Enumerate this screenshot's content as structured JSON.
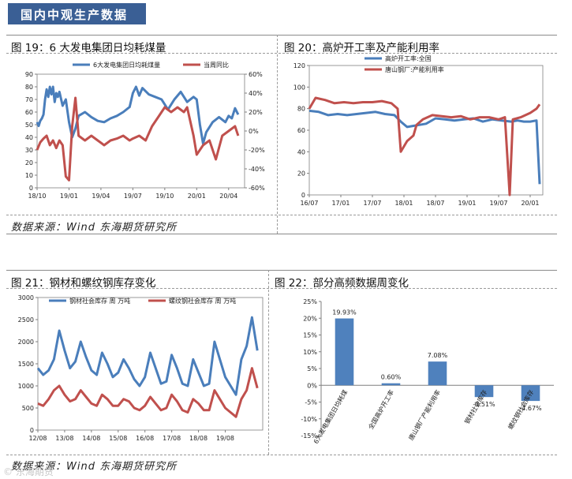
{
  "header": {
    "title": "国内中观生产数据"
  },
  "panels": {
    "p19": {
      "title": "图 19：6 大发电集团日均耗煤量"
    },
    "p20": {
      "title": "图 20：高炉开工率及产能利用率"
    },
    "p21": {
      "title": "图 21：钢材和螺纹钢库存变化"
    },
    "p22": {
      "title": "图 22：部分高频数据周变化"
    }
  },
  "sources": {
    "top": "数据来源：Wind   东海期货研究所",
    "bottom": "数据来源：Wind   东海期货研究所"
  },
  "watermark": "© 东海期货",
  "colors": {
    "blue": "#4a7ebb",
    "red": "#c0504d",
    "bar": "#4f81bd"
  },
  "chart_data": [
    {
      "id": "c19",
      "type": "line",
      "x_ticks": [
        "18/10",
        "19/01",
        "19/04",
        "19/07",
        "19/10",
        "20/01",
        "20/04"
      ],
      "y_left": {
        "range": [
          0,
          90
        ],
        "ticks": [
          "0",
          "10",
          "20",
          "30",
          "40",
          "50",
          "60",
          "70",
          "80",
          "90"
        ]
      },
      "y_right": {
        "range": [
          -60,
          60
        ],
        "ticks": [
          "-60%",
          "-40%",
          "-20%",
          "0%",
          "20%",
          "40%",
          "60%"
        ]
      },
      "series": [
        {
          "name": "6大发电集团日均耗煤量",
          "axis": "left",
          "color": "#4a7ebb",
          "points": [
            [
              0,
              52
            ],
            [
              0.05,
              49
            ],
            [
              0.1,
              53
            ],
            [
              0.15,
              55
            ],
            [
              0.2,
              58
            ],
            [
              0.25,
              70
            ],
            [
              0.3,
              78
            ],
            [
              0.35,
              72
            ],
            [
              0.4,
              80
            ],
            [
              0.45,
              74
            ],
            [
              0.5,
              80
            ],
            [
              0.55,
              68
            ],
            [
              0.6,
              75
            ],
            [
              0.65,
              72
            ],
            [
              0.7,
              76
            ],
            [
              0.8,
              65
            ],
            [
              0.9,
              70
            ],
            [
              1.0,
              52
            ],
            [
              1.1,
              40
            ],
            [
              1.2,
              47
            ],
            [
              1.3,
              57
            ],
            [
              1.5,
              60
            ],
            [
              1.7,
              56
            ],
            [
              1.9,
              53
            ],
            [
              2.1,
              52
            ],
            [
              2.3,
              55
            ],
            [
              2.5,
              57
            ],
            [
              2.7,
              60
            ],
            [
              2.9,
              64
            ],
            [
              3.0,
              75
            ],
            [
              3.1,
              80
            ],
            [
              3.2,
              73
            ],
            [
              3.3,
              79
            ],
            [
              3.5,
              74
            ],
            [
              3.7,
              72
            ],
            [
              3.9,
              70
            ],
            [
              4.1,
              62
            ],
            [
              4.3,
              70
            ],
            [
              4.5,
              76
            ],
            [
              4.7,
              68
            ],
            [
              4.9,
              72
            ],
            [
              5.0,
              70
            ],
            [
              5.1,
              50
            ],
            [
              5.2,
              35
            ],
            [
              5.3,
              44
            ],
            [
              5.5,
              52
            ],
            [
              5.7,
              56
            ],
            [
              5.9,
              52
            ],
            [
              6.0,
              57
            ],
            [
              6.1,
              55
            ],
            [
              6.2,
              63
            ],
            [
              6.3,
              58
            ]
          ]
        },
        {
          "name": "当周同比",
          "axis": "right",
          "color": "#c0504d",
          "points": [
            [
              0,
              -20
            ],
            [
              0.1,
              -12
            ],
            [
              0.2,
              -8
            ],
            [
              0.3,
              -5
            ],
            [
              0.4,
              -15
            ],
            [
              0.5,
              -10
            ],
            [
              0.6,
              -18
            ],
            [
              0.7,
              -10
            ],
            [
              0.8,
              -15
            ],
            [
              0.9,
              -48
            ],
            [
              1.0,
              -52
            ],
            [
              1.1,
              5
            ],
            [
              1.2,
              35
            ],
            [
              1.3,
              -5
            ],
            [
              1.5,
              -10
            ],
            [
              1.7,
              -5
            ],
            [
              1.9,
              -10
            ],
            [
              2.1,
              -15
            ],
            [
              2.3,
              -10
            ],
            [
              2.5,
              -8
            ],
            [
              2.7,
              -5
            ],
            [
              2.9,
              -10
            ],
            [
              3.0,
              -8
            ],
            [
              3.2,
              -5
            ],
            [
              3.4,
              -10
            ],
            [
              3.6,
              5
            ],
            [
              3.8,
              15
            ],
            [
              4.0,
              25
            ],
            [
              4.2,
              20
            ],
            [
              4.4,
              25
            ],
            [
              4.6,
              20
            ],
            [
              4.7,
              25
            ],
            [
              4.9,
              -5
            ],
            [
              5.0,
              -25
            ],
            [
              5.2,
              -15
            ],
            [
              5.4,
              -10
            ],
            [
              5.6,
              -30
            ],
            [
              5.8,
              -5
            ],
            [
              6.0,
              0
            ],
            [
              6.2,
              5
            ],
            [
              6.3,
              -5
            ]
          ]
        }
      ]
    },
    {
      "id": "c20",
      "type": "line",
      "x_ticks": [
        "16/07",
        "17/01",
        "17/07",
        "18/01",
        "18/07",
        "19/01",
        "19/07",
        "20/01"
      ],
      "y_left": {
        "range": [
          0,
          120
        ],
        "ticks": [
          "0",
          "20",
          "40",
          "60",
          "80",
          "100",
          "120"
        ]
      },
      "series": [
        {
          "name": "高炉开工率:全国",
          "color": "#4a7ebb",
          "points": [
            [
              0,
              78
            ],
            [
              0.3,
              77
            ],
            [
              0.6,
              74
            ],
            [
              0.9,
              75
            ],
            [
              1.2,
              74
            ],
            [
              1.5,
              75
            ],
            [
              1.8,
              76
            ],
            [
              2.1,
              77
            ],
            [
              2.4,
              75
            ],
            [
              2.7,
              74
            ],
            [
              2.9,
              68
            ],
            [
              3.1,
              63
            ],
            [
              3.3,
              64
            ],
            [
              3.5,
              65
            ],
            [
              3.7,
              66
            ],
            [
              4.0,
              71
            ],
            [
              4.3,
              70
            ],
            [
              4.6,
              69
            ],
            [
              4.9,
              70
            ],
            [
              5.2,
              71
            ],
            [
              5.5,
              68
            ],
            [
              5.8,
              70
            ],
            [
              6.1,
              69
            ],
            [
              6.4,
              68
            ],
            [
              6.6,
              69
            ],
            [
              6.8,
              68
            ],
            [
              7.0,
              68
            ],
            [
              7.2,
              69
            ],
            [
              7.3,
              10
            ]
          ]
        },
        {
          "name": "唐山钢厂:产能利用率",
          "color": "#c0504d",
          "points": [
            [
              0,
              80
            ],
            [
              0.2,
              90
            ],
            [
              0.5,
              88
            ],
            [
              0.8,
              85
            ],
            [
              1.1,
              86
            ],
            [
              1.4,
              85
            ],
            [
              1.7,
              86
            ],
            [
              2.0,
              86
            ],
            [
              2.3,
              87
            ],
            [
              2.6,
              85
            ],
            [
              2.8,
              80
            ],
            [
              2.9,
              40
            ],
            [
              3.0,
              45
            ],
            [
              3.1,
              50
            ],
            [
              3.3,
              55
            ],
            [
              3.4,
              65
            ],
            [
              3.6,
              70
            ],
            [
              3.9,
              74
            ],
            [
              4.2,
              73
            ],
            [
              4.5,
              72
            ],
            [
              4.8,
              73
            ],
            [
              5.1,
              70
            ],
            [
              5.4,
              72
            ],
            [
              5.7,
              72
            ],
            [
              6.0,
              70
            ],
            [
              6.2,
              72
            ],
            [
              6.35,
              0
            ],
            [
              6.45,
              70
            ],
            [
              6.7,
              72
            ],
            [
              7.0,
              76
            ],
            [
              7.2,
              80
            ],
            [
              7.3,
              84
            ]
          ]
        }
      ]
    },
    {
      "id": "c21",
      "type": "line",
      "x_ticks": [
        "12/08",
        "13/08",
        "14/08",
        "15/08",
        "16/08",
        "17/08",
        "18/08",
        "19/08"
      ],
      "y_left": {
        "range": [
          0,
          3000
        ],
        "ticks": [
          "0",
          "500",
          "1000",
          "1500",
          "2000",
          "2500",
          "3000"
        ]
      },
      "series": [
        {
          "name": "钢材社会库存 周 万吨",
          "color": "#4a7ebb",
          "points": [
            [
              0,
              1400
            ],
            [
              0.2,
              1250
            ],
            [
              0.4,
              1350
            ],
            [
              0.6,
              1600
            ],
            [
              0.8,
              2250
            ],
            [
              1.0,
              1800
            ],
            [
              1.2,
              1400
            ],
            [
              1.4,
              1550
            ],
            [
              1.6,
              2000
            ],
            [
              1.8,
              1650
            ],
            [
              2.0,
              1350
            ],
            [
              2.2,
              1250
            ],
            [
              2.4,
              1750
            ],
            [
              2.6,
              1500
            ],
            [
              2.8,
              1200
            ],
            [
              3.0,
              1300
            ],
            [
              3.2,
              1600
            ],
            [
              3.4,
              1400
            ],
            [
              3.6,
              1150
            ],
            [
              3.8,
              1000
            ],
            [
              4.0,
              1200
            ],
            [
              4.2,
              1750
            ],
            [
              4.4,
              1400
            ],
            [
              4.6,
              1050
            ],
            [
              4.8,
              1100
            ],
            [
              5.0,
              1700
            ],
            [
              5.2,
              1400
            ],
            [
              5.4,
              1050
            ],
            [
              5.6,
              1000
            ],
            [
              5.8,
              1600
            ],
            [
              6.0,
              1300
            ],
            [
              6.2,
              1000
            ],
            [
              6.4,
              1050
            ],
            [
              6.6,
              2000
            ],
            [
              6.8,
              1600
            ],
            [
              7.0,
              1200
            ],
            [
              7.2,
              1000
            ],
            [
              7.4,
              800
            ],
            [
              7.6,
              1600
            ],
            [
              7.8,
              1900
            ],
            [
              8.0,
              2550
            ],
            [
              8.2,
              1800
            ]
          ]
        },
        {
          "name": "螺纹钢社会库存 周 万吨",
          "color": "#c0504d",
          "points": [
            [
              0,
              600
            ],
            [
              0.2,
              550
            ],
            [
              0.4,
              700
            ],
            [
              0.6,
              900
            ],
            [
              0.8,
              1000
            ],
            [
              1.0,
              800
            ],
            [
              1.2,
              650
            ],
            [
              1.4,
              700
            ],
            [
              1.6,
              900
            ],
            [
              1.8,
              750
            ],
            [
              2.0,
              600
            ],
            [
              2.2,
              550
            ],
            [
              2.4,
              800
            ],
            [
              2.6,
              700
            ],
            [
              2.8,
              550
            ],
            [
              3.0,
              550
            ],
            [
              3.2,
              700
            ],
            [
              3.4,
              650
            ],
            [
              3.6,
              500
            ],
            [
              3.8,
              450
            ],
            [
              4.0,
              550
            ],
            [
              4.2,
              750
            ],
            [
              4.4,
              600
            ],
            [
              4.6,
              450
            ],
            [
              4.8,
              500
            ],
            [
              5.0,
              800
            ],
            [
              5.2,
              650
            ],
            [
              5.4,
              450
            ],
            [
              5.6,
              400
            ],
            [
              5.8,
              700
            ],
            [
              6.0,
              600
            ],
            [
              6.2,
              450
            ],
            [
              6.4,
              450
            ],
            [
              6.6,
              900
            ],
            [
              6.8,
              700
            ],
            [
              7.0,
              500
            ],
            [
              7.2,
              400
            ],
            [
              7.4,
              300
            ],
            [
              7.6,
              700
            ],
            [
              7.8,
              900
            ],
            [
              8.0,
              1400
            ],
            [
              8.2,
              950
            ]
          ]
        }
      ]
    },
    {
      "id": "c22",
      "type": "bar",
      "categories": [
        "6大发电集团日均耗煤",
        "全国高炉开工率",
        "唐山钢厂产能利用率",
        "钢材社会库存",
        "螺纹钢社会库存"
      ],
      "values": [
        19.93,
        0.6,
        7.08,
        -3.51,
        -4.67
      ],
      "data_labels": [
        "19.93%",
        "0.60%",
        "7.08%",
        "-3.51%",
        "-4.67%"
      ],
      "y_left": {
        "range": [
          -15,
          25
        ],
        "ticks": [
          "-15%",
          "-10%",
          "-5%",
          "0%",
          "5%",
          "10%",
          "15%",
          "20%",
          "25%"
        ]
      }
    }
  ]
}
